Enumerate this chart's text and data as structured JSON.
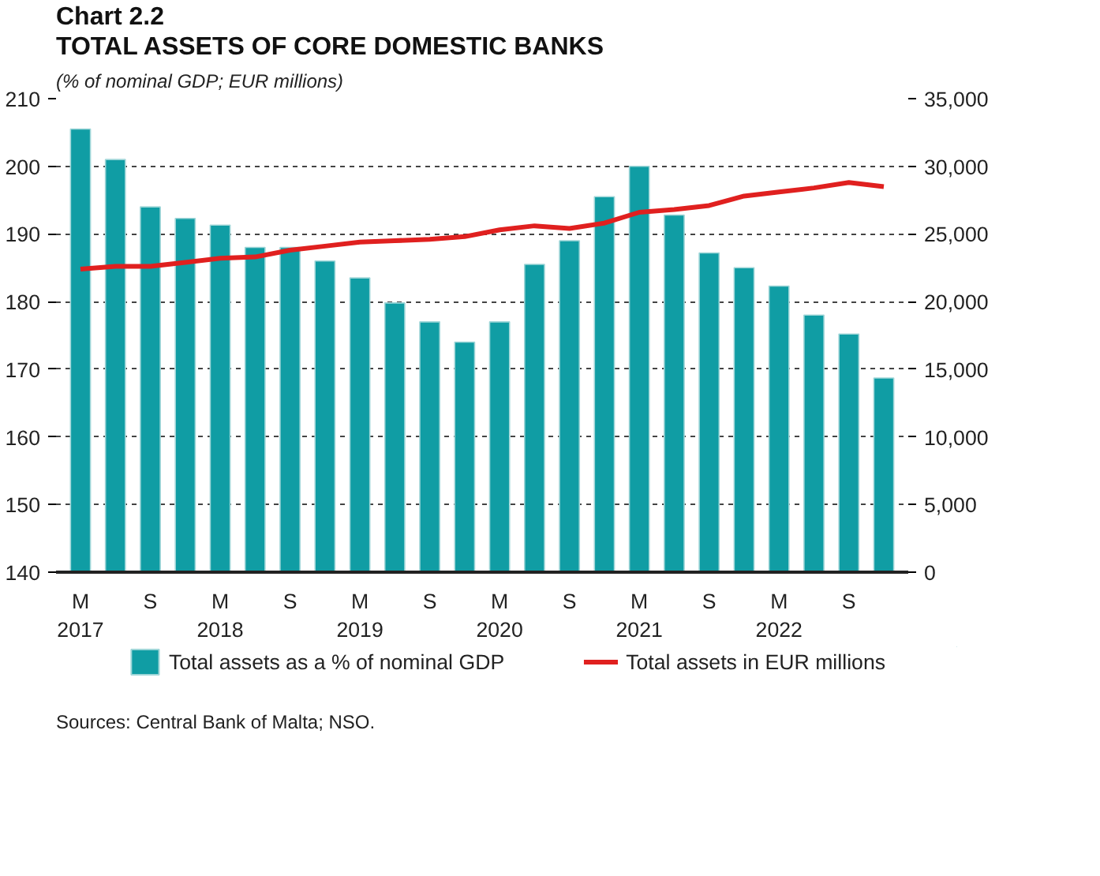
{
  "chart_data": {
    "type": "bar",
    "title": "Chart 2.2",
    "subtitle": "TOTAL ASSETS OF CORE DOMESTIC BANKS",
    "annotations": [
      "(% of nominal GDP; EUR millions)",
      "Sources: Central Bank of Malta; NSO."
    ],
    "categories": [
      "M\n2017",
      null,
      "S",
      null,
      "M\n2018",
      null,
      "S",
      null,
      "M\n2019",
      null,
      "S",
      null,
      "M\n2020",
      null,
      "S",
      null,
      "M\n2021",
      null,
      "S",
      null,
      "M\n2022",
      null,
      "S",
      null
    ],
    "series": [
      {
        "name": "Total assets as a % of nominal GDP",
        "color": "#109da4",
        "values": [
          205.5,
          201,
          194,
          192.3,
          191.3,
          188,
          188,
          186,
          183.5,
          179.8,
          177,
          174,
          177,
          185.5,
          189,
          195.5,
          200,
          192.8,
          187.2,
          185,
          182.3,
          178,
          175.2,
          168.7
        ]
      },
      {
        "name": "Total assets in EUR millions",
        "type": "line",
        "axis": "y2",
        "color": "#e0201f",
        "values": [
          22400,
          22600,
          22600,
          22900,
          23200,
          23300,
          23800,
          24100,
          24400,
          24500,
          24600,
          24800,
          25300,
          25600,
          25400,
          25800,
          26600,
          26800,
          27100,
          27800,
          28100,
          28400,
          28800,
          28500
        ]
      }
    ],
    "ylim": [
      140,
      210
    ],
    "yticks": [
      140,
      150,
      160,
      170,
      180,
      190,
      200,
      210
    ],
    "y2lim": [
      0,
      35000
    ],
    "y2ticks": [
      0,
      {
        "value": 5000,
        "label": "5,000"
      },
      {
        "value": 10000,
        "label": "10,000"
      },
      {
        "value": 15000,
        "label": "15,000"
      },
      {
        "value": 20000,
        "label": "20,000"
      },
      {
        "value": 25000,
        "label": "25,000"
      },
      {
        "value": 30000,
        "label": "30,000"
      },
      {
        "value": 35000,
        "label": "35,000"
      }
    ],
    "grid": "y",
    "legend": "bottom",
    "line_style": "solid",
    "marker": "none"
  }
}
